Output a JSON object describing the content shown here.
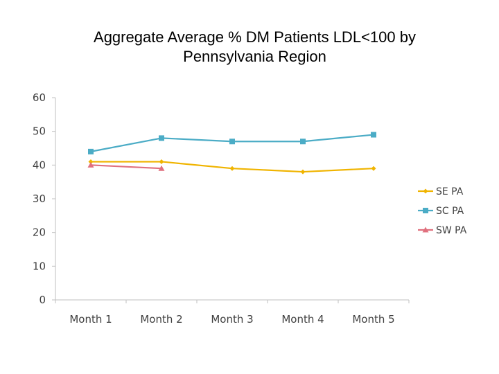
{
  "chart_data": {
    "type": "line",
    "title_line1": "Aggregate Average % DM Patients LDL<100 by",
    "title_line2": "Pennsylvania Region",
    "categories": [
      "Month 1",
      "Month 2",
      "Month 3",
      "Month 4",
      "Month 5"
    ],
    "ylim": [
      0,
      60
    ],
    "yticks": [
      0,
      10,
      20,
      30,
      40,
      50,
      60
    ],
    "grid": false,
    "legend_position": "right",
    "series": [
      {
        "name": "SE PA",
        "color": "#F0B400",
        "marker": "diamond",
        "values": [
          41,
          41,
          39,
          38,
          39
        ]
      },
      {
        "name": "SC PA",
        "color": "#4BACC6",
        "marker": "square",
        "values": [
          44,
          48,
          47,
          47,
          49
        ]
      },
      {
        "name": "SW PA",
        "color": "#E0707E",
        "marker": "triangle",
        "values": [
          40,
          39,
          null,
          null,
          null
        ]
      }
    ]
  }
}
